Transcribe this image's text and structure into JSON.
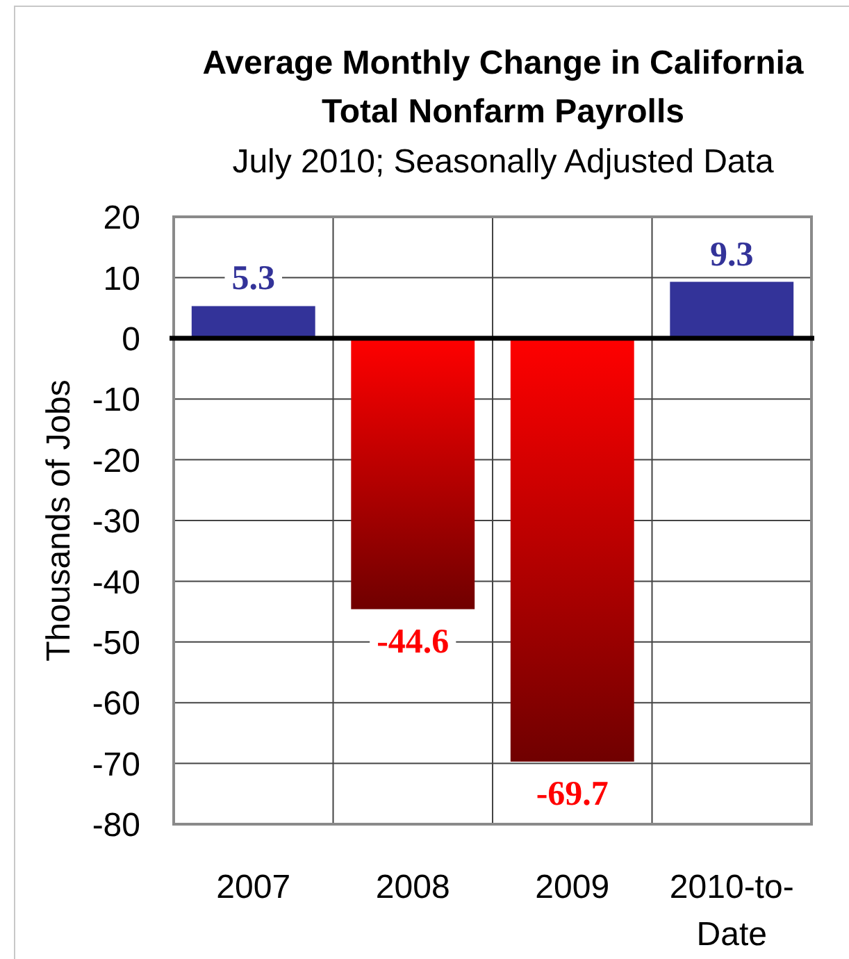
{
  "chart_data": {
    "type": "bar",
    "title": "Average Monthly Change in California Total Nonfarm Payrolls",
    "subtitle": "July 2010; Seasonally Adjusted Data",
    "ylabel": "Thousands of Jobs",
    "categories": [
      "2007",
      "2008",
      "2009",
      "2010-to-Date"
    ],
    "values": [
      5.3,
      -44.6,
      -69.7,
      9.3
    ],
    "colors": [
      "#333399",
      "#ff0000",
      "#ff0000",
      "#333399"
    ],
    "ylim": [
      -80,
      20
    ],
    "yticks": [
      -80,
      -70,
      -60,
      -50,
      -40,
      -30,
      -20,
      -10,
      0,
      10,
      20
    ],
    "grid": true,
    "data_labels": true
  }
}
